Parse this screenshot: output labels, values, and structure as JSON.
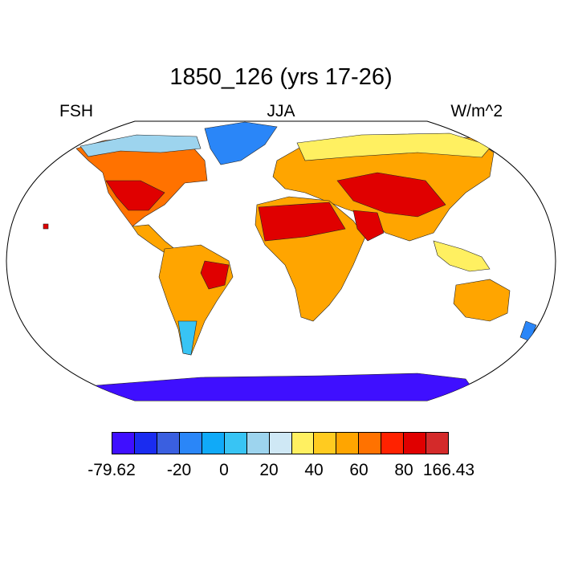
{
  "title": "1850_126 (yrs 17-26)",
  "left_label": "FSH",
  "center_label": "JJA",
  "right_label": "W/m^2",
  "colorbar": {
    "colors": [
      "#3f0fff",
      "#1a2cf0",
      "#3a5fe0",
      "#2a86f8",
      "#10aaf8",
      "#38c4f4",
      "#9dd4ee",
      "#cfe8f5",
      "#fff061",
      "#ffcb20",
      "#ffa500",
      "#ff7200",
      "#ff2200",
      "#e00000",
      "#d42a2a"
    ],
    "ticks": [
      {
        "label": "-79.62",
        "index": 0
      },
      {
        "label": "-20",
        "index": 3
      },
      {
        "label": "0",
        "index": 5
      },
      {
        "label": "20",
        "index": 7
      },
      {
        "label": "40",
        "index": 9
      },
      {
        "label": "60",
        "index": 11
      },
      {
        "label": "80",
        "index": 13
      },
      {
        "label": "166.43",
        "index": 15
      }
    ]
  }
}
